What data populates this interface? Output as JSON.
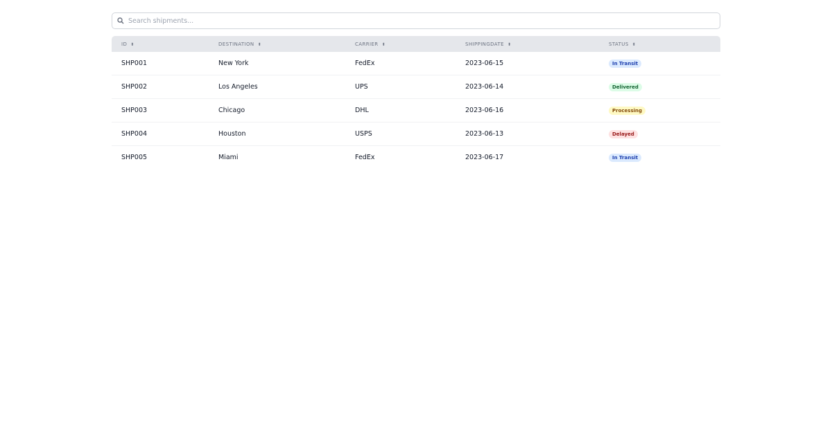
{
  "search": {
    "placeholder": "Search shipments..."
  },
  "table": {
    "headers": [
      "ID",
      "DESTINATION",
      "CARRIER",
      "SHIPPINGDATE",
      "STATUS"
    ],
    "rows": [
      {
        "id": "SHP001",
        "destination": "New York",
        "carrier": "FedEx",
        "date": "2023-06-15",
        "status": "In Transit"
      },
      {
        "id": "SHP002",
        "destination": "Los Angeles",
        "carrier": "UPS",
        "date": "2023-06-14",
        "status": "Delivered"
      },
      {
        "id": "SHP003",
        "destination": "Chicago",
        "carrier": "DHL",
        "date": "2023-06-16",
        "status": "Processing"
      },
      {
        "id": "SHP004",
        "destination": "Houston",
        "carrier": "USPS",
        "date": "2023-06-13",
        "status": "Delayed"
      },
      {
        "id": "SHP005",
        "destination": "Miami",
        "carrier": "FedEx",
        "date": "2023-06-17",
        "status": "In Transit"
      }
    ]
  },
  "status_colors": {
    "In Transit": {
      "bg": "#dbeafe",
      "fg": "#1e40af"
    },
    "Delivered": {
      "bg": "#dcfce7",
      "fg": "#166534"
    },
    "Processing": {
      "bg": "#fef9c3",
      "fg": "#854d0e"
    },
    "Delayed": {
      "bg": "#fee2e2",
      "fg": "#991b1b"
    }
  }
}
